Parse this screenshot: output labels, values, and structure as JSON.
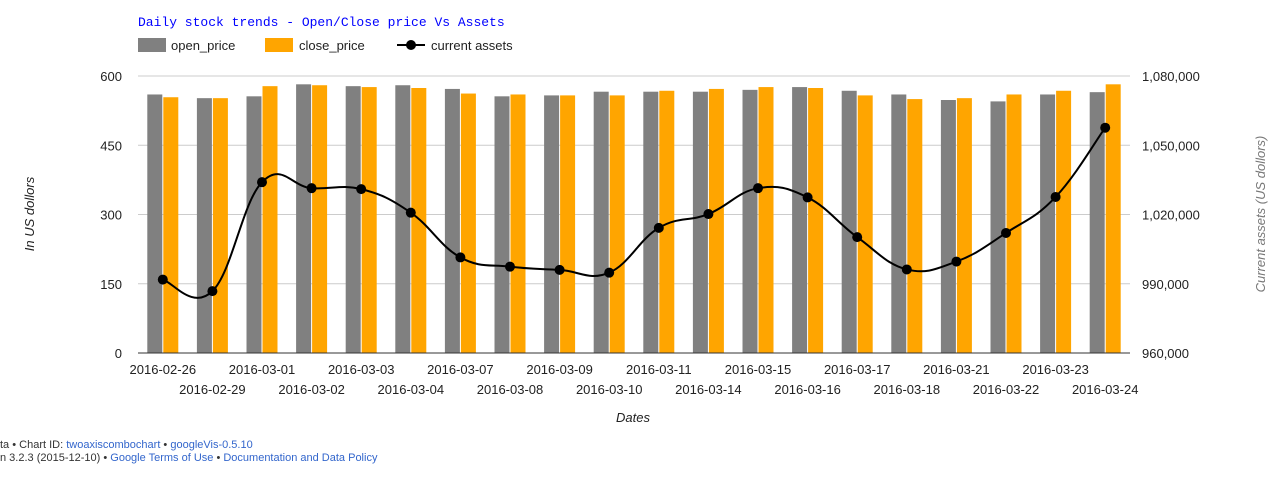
{
  "chart_data": {
    "type": "combo",
    "title": "Daily stock trends - Open/Close price Vs Assets",
    "xlabel": "Dates",
    "ylabel_left": "In US dollors",
    "ylabel_right": "Current assets (US dollors)",
    "categories": [
      "2016-02-26",
      "2016-02-29",
      "2016-03-01",
      "2016-03-02",
      "2016-03-03",
      "2016-03-04",
      "2016-03-07",
      "2016-03-08",
      "2016-03-09",
      "2016-03-10",
      "2016-03-11",
      "2016-03-14",
      "2016-03-15",
      "2016-03-16",
      "2016-03-17",
      "2016-03-18",
      "2016-03-21",
      "2016-03-22",
      "2016-03-23",
      "2016-03-24"
    ],
    "left_axis": {
      "min": 0,
      "max": 600,
      "ticks": [
        0,
        150,
        300,
        450,
        600
      ],
      "tick_labels": [
        "0",
        "150",
        "300",
        "450",
        "600"
      ]
    },
    "right_axis": {
      "min": 960000,
      "max": 1080000,
      "ticks": [
        960000,
        990000,
        1020000,
        1050000,
        1080000
      ],
      "tick_labels": [
        "960,000",
        "990,000",
        "1,020,000",
        "1,050,000",
        "1,080,000"
      ]
    },
    "grid": true,
    "legend_position": "top",
    "series": [
      {
        "name": "open_price",
        "kind": "bar",
        "axis": "left",
        "color": "#808080",
        "values": [
          560,
          552,
          556,
          582,
          578,
          580,
          572,
          556,
          558,
          566,
          566,
          566,
          570,
          576,
          568,
          560,
          548,
          545,
          560,
          565
        ]
      },
      {
        "name": "close_price",
        "kind": "bar",
        "axis": "left",
        "color": "#ffa500",
        "values": [
          554,
          552,
          578,
          580,
          576,
          574,
          562,
          560,
          558,
          558,
          568,
          572,
          576,
          574,
          558,
          550,
          552,
          560,
          568,
          582
        ]
      },
      {
        "name": "current assets",
        "kind": "line",
        "axis": "right",
        "color": "#000000",
        "values": [
          991800,
          986800,
          1034000,
          1031400,
          1031000,
          1020800,
          1001400,
          997400,
          996000,
          994800,
          1014200,
          1020200,
          1031400,
          1027400,
          1010200,
          996200,
          999600,
          1012000,
          1027600,
          1057600
        ]
      }
    ]
  },
  "footer": {
    "line1_prefix": "ta • Chart ID: ",
    "line1_chart_id": "twoaxiscombochart",
    "line1_sep": " • ",
    "line1_version": "googleVis-0.5.10",
    "line2_prefix": "n 3.2.3 (2015-12-10) • ",
    "line2_terms": "Google Terms of Use",
    "line2_sep": " • ",
    "line2_policy": "Documentation and Data Policy"
  },
  "colors": {
    "title": "#0000ff",
    "axis_text": "#222222",
    "right_axis_title": "#777777",
    "gridline": "#cccccc",
    "link": "#3366cc"
  }
}
